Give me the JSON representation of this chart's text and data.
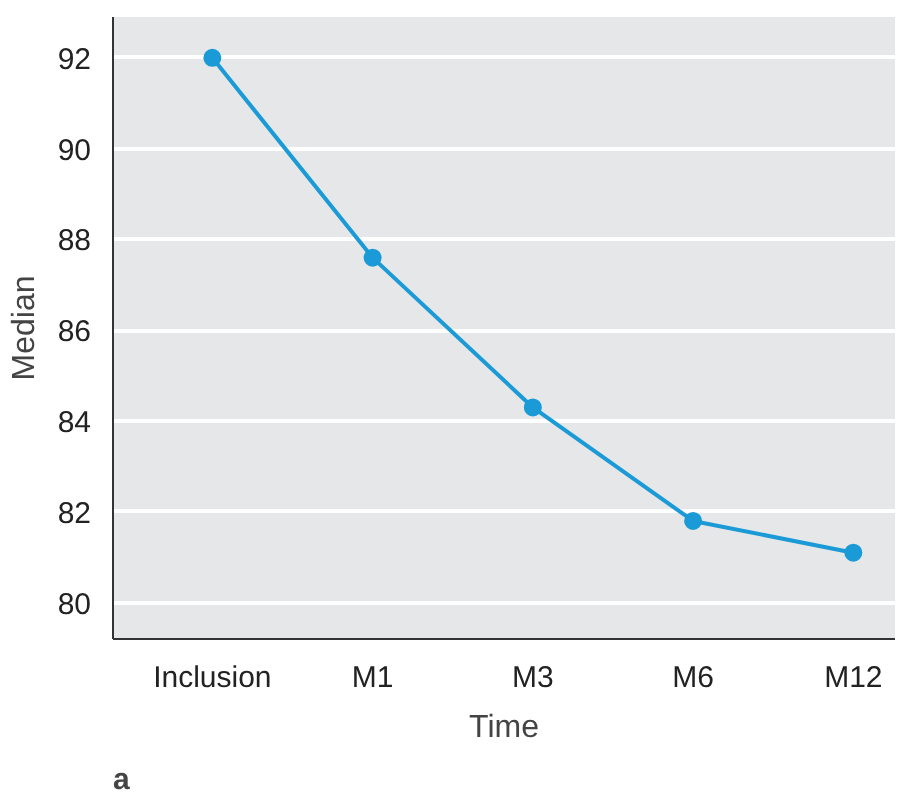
{
  "chart_data": {
    "type": "line",
    "xlabel": "Time",
    "ylabel": "Median",
    "categories": [
      "Inclusion",
      "M1",
      "M3",
      "M6",
      "M12"
    ],
    "series": [
      {
        "color": "#1a9ad6",
        "values": [
          92.0,
          87.6,
          84.3,
          81.8,
          81.1
        ]
      }
    ],
    "ylim": [
      79.2,
      92.9
    ],
    "yticks": [
      80,
      82,
      84,
      86,
      88,
      90,
      92
    ],
    "grid": "y",
    "marker": "circle",
    "line_style": "solid",
    "annotations": [
      "a"
    ]
  }
}
